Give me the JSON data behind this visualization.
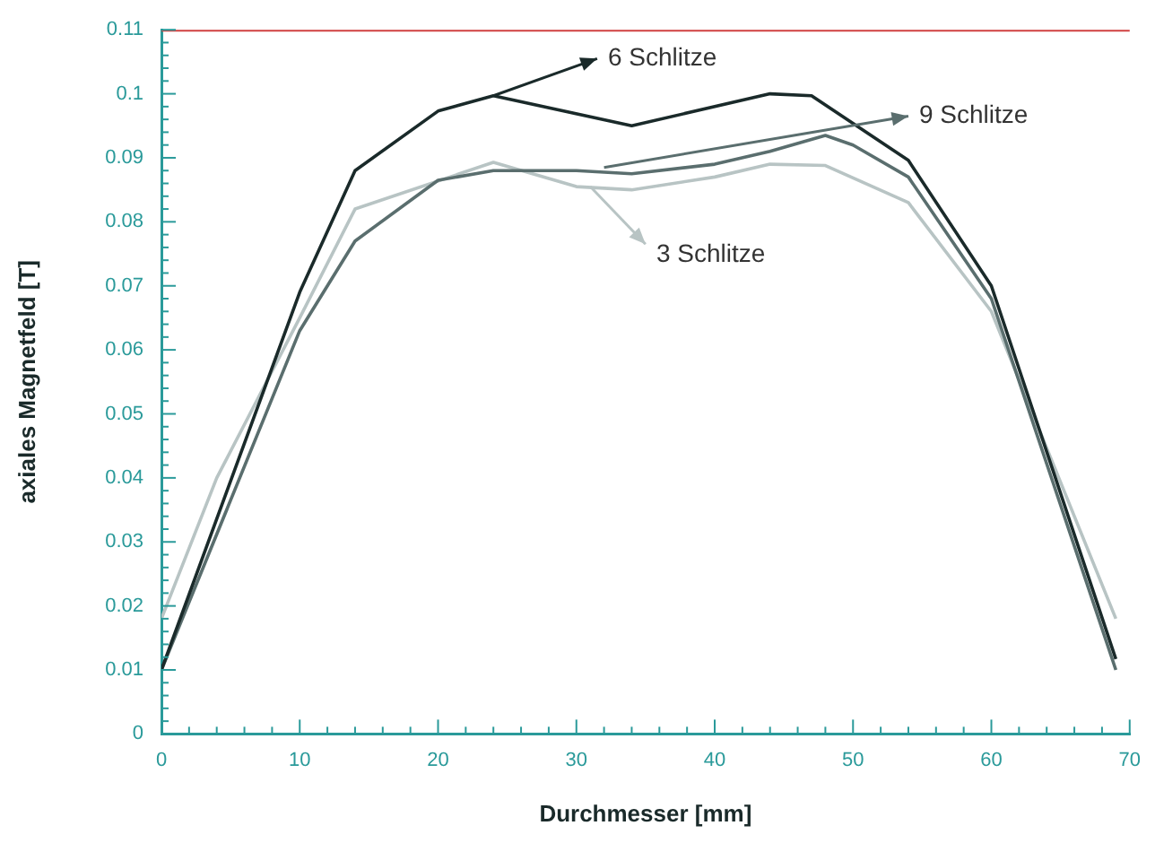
{
  "chart_data": {
    "type": "line",
    "xlabel": "Durchmesser [mm]",
    "ylabel": "axiales Magnetfeld [T]",
    "xlim": [
      0,
      70
    ],
    "xticks": [
      0,
      10,
      20,
      30,
      40,
      50,
      60,
      70
    ],
    "ylim": [
      0,
      0.11
    ],
    "yticks": [
      0,
      0.01,
      0.02,
      0.03,
      0.04,
      0.05,
      0.06,
      0.07,
      0.08,
      0.09,
      0.1,
      0.11
    ],
    "grid": false,
    "legend": "top right",
    "marker": "none",
    "line_style": "solid",
    "series": [
      {
        "name": "6 Schlitze",
        "color": "#1a2a2a",
        "x": [
          0,
          10,
          14,
          20,
          24,
          34,
          44,
          47,
          54,
          60,
          69
        ],
        "values": [
          0.01,
          0.069,
          0.088,
          0.0973,
          0.0997,
          0.095,
          0.1,
          0.0997,
          0.0896,
          0.07,
          0.0117
        ]
      },
      {
        "name": "9 Schlitze",
        "color": "#5a6e6e",
        "x": [
          0,
          10,
          14,
          20,
          24,
          30,
          34,
          40,
          44,
          48,
          50,
          54,
          60,
          69
        ],
        "values": [
          0.01,
          0.063,
          0.077,
          0.0865,
          0.088,
          0.088,
          0.0875,
          0.089,
          0.091,
          0.0935,
          0.092,
          0.087,
          0.068,
          0.01
        ]
      },
      {
        "name": "3 Schlitze",
        "color": "#b8c4c4",
        "x": [
          0,
          4,
          10,
          14,
          24,
          30,
          34,
          40,
          44,
          48,
          54,
          60,
          69
        ],
        "values": [
          0.018,
          0.04,
          0.065,
          0.082,
          0.0893,
          0.0855,
          0.085,
          0.087,
          0.089,
          0.0888,
          0.083,
          0.066,
          0.018
        ]
      }
    ]
  }
}
